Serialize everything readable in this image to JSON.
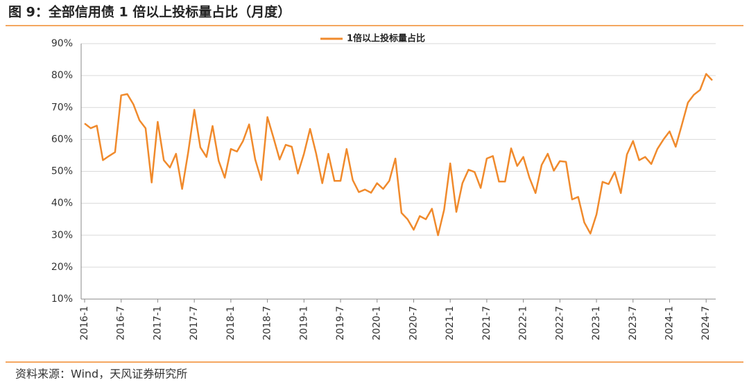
{
  "chart_data": {
    "type": "line",
    "title": "图 9：全部信用债 1 倍以上投标量占比（月度）",
    "source": "资料来源：Wind，天风证券研究所",
    "categories": [
      "2016-1",
      null,
      null,
      null,
      null,
      null,
      "2016-7",
      null,
      null,
      null,
      null,
      null,
      "2017-1",
      null,
      null,
      null,
      null,
      null,
      "2017-7",
      null,
      null,
      null,
      null,
      null,
      "2018-1",
      null,
      null,
      null,
      null,
      null,
      "2018-7",
      null,
      null,
      null,
      null,
      null,
      "2019-1",
      null,
      null,
      null,
      null,
      null,
      "2019-7",
      null,
      null,
      null,
      null,
      null,
      "2020-1",
      null,
      null,
      null,
      null,
      null,
      "2020-7",
      null,
      null,
      null,
      null,
      null,
      "2021-1",
      null,
      null,
      null,
      null,
      null,
      "2021-7",
      null,
      null,
      null,
      null,
      null,
      "2022-1",
      null,
      null,
      null,
      null,
      null,
      "2022-7",
      null,
      null,
      null,
      null,
      null,
      "2023-1",
      null,
      null,
      null,
      null,
      null,
      "2023-7",
      null,
      null,
      null,
      null,
      null,
      "2024-1",
      null,
      null,
      null,
      null,
      null,
      "2024-7",
      null
    ],
    "series": [
      {
        "name": "1倍以上投标量占比",
        "color": "#f08a2c",
        "values": [
          65,
          63.5,
          64.3,
          53.5,
          54.8,
          56,
          73.8,
          74.2,
          71,
          66,
          63.5,
          46.5,
          65.5,
          53.5,
          51.2,
          55.5,
          44.5,
          56,
          69.3,
          57.5,
          54.5,
          64.2,
          53.3,
          48,
          57,
          56.2,
          59.5,
          64.7,
          53.7,
          47.3,
          67,
          60.5,
          53.7,
          58.3,
          57.7,
          49.3,
          55.5,
          63.3,
          55.5,
          46.3,
          55.5,
          47,
          47,
          57,
          47.3,
          43.5,
          44.3,
          43.3,
          46.3,
          44.5,
          47,
          54,
          37,
          35,
          31.7,
          36,
          35,
          38.3,
          30,
          38,
          52.5,
          37.3,
          46.3,
          50.5,
          49.8,
          44.8,
          54,
          54.8,
          46.8,
          46.8,
          57.2,
          51.7,
          54.5,
          48,
          43.2,
          52,
          55.5,
          50.2,
          53.2,
          53,
          41.2,
          42,
          34,
          30.5,
          36.5,
          46.7,
          46,
          49.8,
          43.2,
          55.3,
          59.5,
          53.5,
          54.5,
          52.3,
          57,
          60,
          62.5,
          57.7,
          64.5,
          71.5,
          74,
          75.5,
          80.5,
          78.5
        ]
      }
    ],
    "ylim": [
      10,
      90
    ],
    "yticks": [
      {
        "value": 10,
        "label": "10%"
      },
      {
        "value": 20,
        "label": "20%"
      },
      {
        "value": 30,
        "label": "30%"
      },
      {
        "value": 40,
        "label": "40%"
      },
      {
        "value": 50,
        "label": "50%"
      },
      {
        "value": 60,
        "label": "60%"
      },
      {
        "value": 70,
        "label": "70%"
      },
      {
        "value": 80,
        "label": "80%"
      },
      {
        "value": 90,
        "label": "90%"
      }
    ],
    "grid": true,
    "legend": "top"
  }
}
